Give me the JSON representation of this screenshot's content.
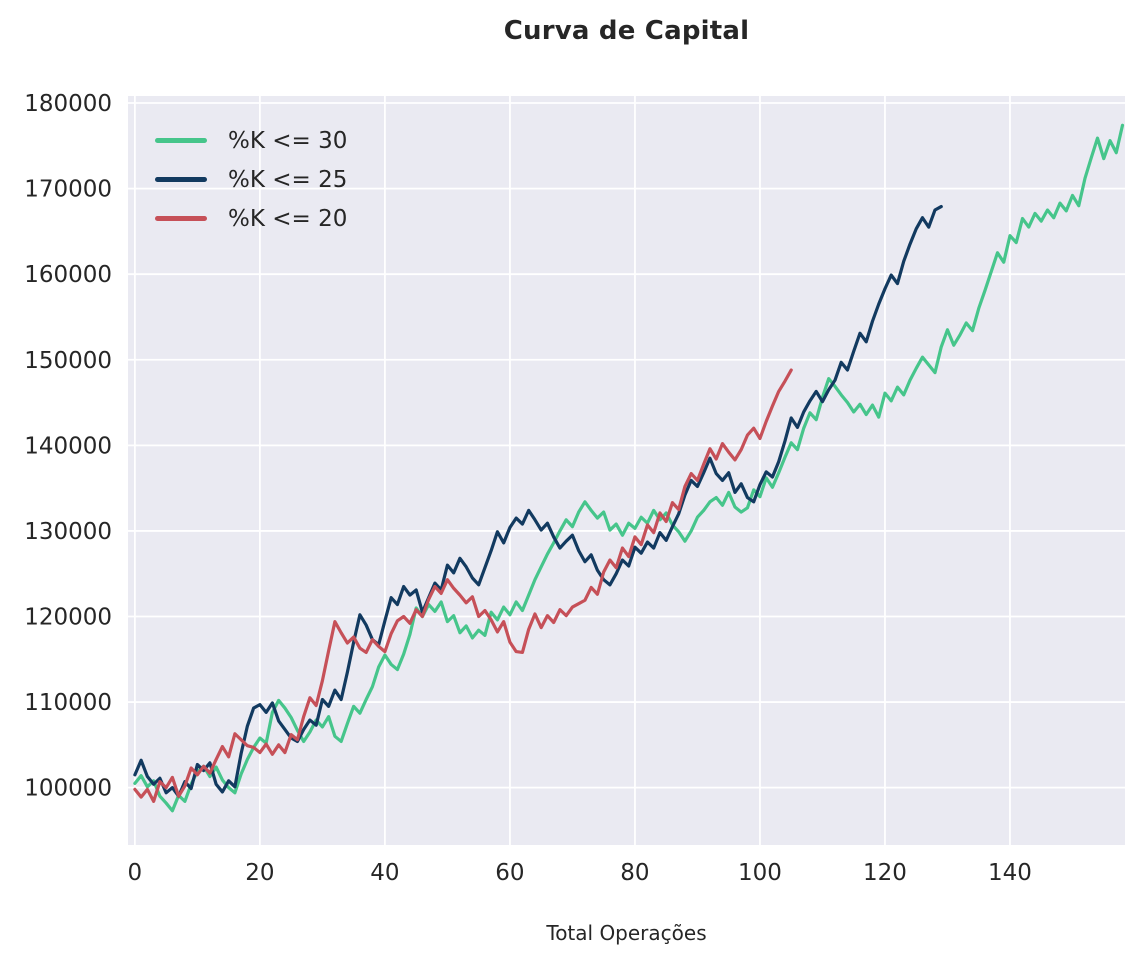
{
  "title": "Curva de Capital",
  "x_axis_label": "Total Operações",
  "colors": {
    "plot_background": "#eaeaf2",
    "grid": "#ffffff",
    "text": "#262626",
    "series_green": "#46c58b",
    "series_navy": "#123a60",
    "series_red": "#c65058"
  },
  "chart_data": {
    "type": "line",
    "title": "Curva de Capital",
    "xlabel": "Total Operações",
    "ylabel": "",
    "grid": true,
    "legend_position": "upper-left",
    "xlim": [
      -1.1,
      158.4
    ],
    "ylim": [
      93300,
      180820
    ],
    "x_ticks": [
      0,
      20,
      40,
      60,
      80,
      100,
      120,
      140
    ],
    "y_ticks": [
      100000,
      110000,
      120000,
      130000,
      140000,
      150000,
      160000,
      170000,
      180000
    ],
    "x_start": 0,
    "x_step": 1,
    "series": [
      {
        "name": "%K <= 30",
        "color": "#46c58b",
        "values": [
          100500,
          101400,
          100100,
          100800,
          99000,
          98200,
          97300,
          99100,
          98400,
          100400,
          101900,
          102500,
          101300,
          102400,
          100900,
          100000,
          99400,
          101600,
          103300,
          104700,
          105800,
          105200,
          108800,
          110200,
          109300,
          108200,
          106700,
          105400,
          106500,
          107900,
          107100,
          108300,
          106000,
          105400,
          107500,
          109500,
          108700,
          110300,
          111800,
          114100,
          115500,
          114400,
          113800,
          115600,
          117900,
          121000,
          120000,
          121400,
          120600,
          121700,
          119400,
          120100,
          118100,
          118900,
          117500,
          118400,
          117800,
          120500,
          119600,
          121100,
          120200,
          121700,
          120700,
          122500,
          124300,
          125800,
          127300,
          128600,
          130000,
          131300,
          130500,
          132200,
          133400,
          132400,
          131500,
          132200,
          130100,
          130800,
          129500,
          130900,
          130300,
          131600,
          130900,
          132400,
          131300,
          132100,
          130700,
          129900,
          128800,
          130000,
          131600,
          132400,
          133400,
          133900,
          133000,
          134500,
          132800,
          132200,
          132700,
          134800,
          134000,
          136200,
          135100,
          136800,
          138600,
          140300,
          139500,
          142000,
          143800,
          143000,
          145600,
          147800,
          146900,
          145900,
          145000,
          143900,
          144800,
          143600,
          144700,
          143300,
          146100,
          145200,
          146800,
          145900,
          147600,
          149000,
          150300,
          149400,
          148500,
          151500,
          153500,
          151700,
          152900,
          154300,
          153400,
          156000,
          158100,
          160300,
          162500,
          161400,
          164500,
          163700,
          166500,
          165500,
          167100,
          166200,
          167500,
          166600,
          168300,
          167400,
          169200,
          168000,
          171200,
          173600,
          175900,
          173500,
          175600,
          174200,
          177400
        ]
      },
      {
        "name": "%K <= 25",
        "color": "#123a60",
        "values": [
          101500,
          103200,
          101300,
          100400,
          101100,
          99400,
          100000,
          99000,
          100700,
          99900,
          102700,
          102000,
          102900,
          100400,
          99500,
          100800,
          100100,
          104000,
          107200,
          109300,
          109700,
          108800,
          109900,
          107800,
          106800,
          105800,
          105400,
          106800,
          107900,
          107300,
          110300,
          109500,
          111400,
          110300,
          113500,
          117000,
          120200,
          119000,
          117300,
          116700,
          119500,
          122200,
          121400,
          123500,
          122500,
          123100,
          120500,
          122200,
          123900,
          123100,
          126000,
          125100,
          126800,
          125800,
          124500,
          123700,
          125700,
          127700,
          129900,
          128600,
          130400,
          131500,
          130800,
          132400,
          131300,
          130100,
          130900,
          129300,
          128000,
          128800,
          129500,
          127700,
          126400,
          127200,
          125400,
          124300,
          123700,
          125000,
          126600,
          125900,
          128100,
          127400,
          128700,
          128000,
          129800,
          128900,
          130500,
          132000,
          134200,
          135900,
          135200,
          136800,
          138500,
          136700,
          135900,
          136800,
          134500,
          135500,
          133900,
          133400,
          135400,
          136900,
          136300,
          138100,
          140500,
          143200,
          142100,
          143900,
          145200,
          146300,
          145100,
          146500,
          147600,
          149700,
          148800,
          151000,
          153100,
          152100,
          154500,
          156500,
          158300,
          159900,
          158900,
          161500,
          163500,
          165300,
          166600,
          165500,
          167500,
          167900
        ]
      },
      {
        "name": "%K <= 20",
        "color": "#c65058",
        "values": [
          99800,
          98900,
          99800,
          98400,
          100700,
          100000,
          101200,
          99000,
          100200,
          102300,
          101500,
          102500,
          101700,
          103300,
          104800,
          103600,
          106300,
          105600,
          104900,
          104700,
          104100,
          105100,
          103900,
          105000,
          104100,
          106200,
          105600,
          108300,
          110500,
          109600,
          112500,
          116000,
          119400,
          118100,
          116900,
          117600,
          116300,
          115800,
          117300,
          116500,
          115900,
          118000,
          119500,
          120000,
          119200,
          120800,
          120000,
          122000,
          123500,
          122700,
          124300,
          123300,
          122500,
          121600,
          122300,
          120000,
          120700,
          119600,
          118200,
          119400,
          117000,
          115900,
          115800,
          118500,
          120300,
          118700,
          120100,
          119300,
          120800,
          120100,
          121100,
          121500,
          121900,
          123400,
          122600,
          125200,
          126600,
          125700,
          128000,
          127000,
          129300,
          128400,
          130700,
          129800,
          132100,
          131100,
          133300,
          132500,
          135200,
          136700,
          135900,
          137800,
          139600,
          138400,
          140200,
          139200,
          138300,
          139500,
          141200,
          142000,
          140800,
          142800,
          144600,
          146300,
          147500,
          148800
        ]
      }
    ]
  }
}
